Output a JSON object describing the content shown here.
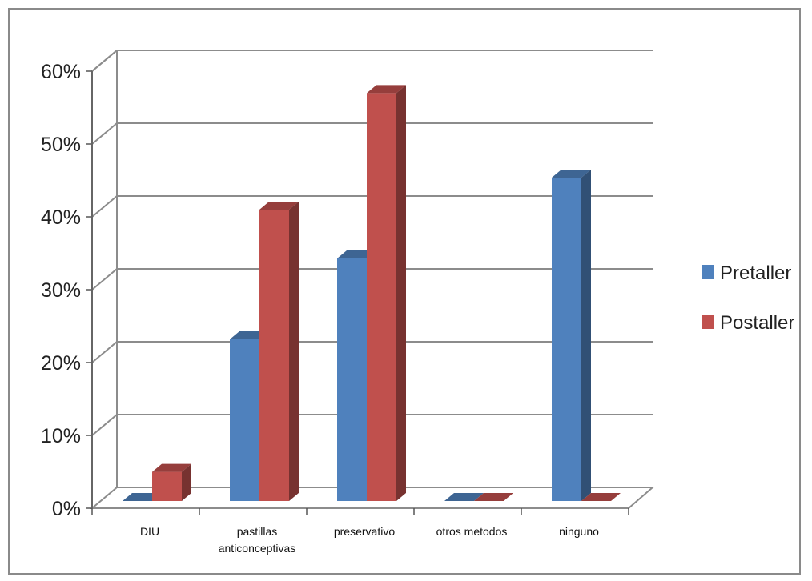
{
  "chart_data": {
    "type": "bar",
    "style": "3d-clustered-column",
    "categories": [
      [
        "DIU"
      ],
      [
        "pastillas",
        "anticonceptivas"
      ],
      [
        "preservativo"
      ],
      [
        "otros metodos"
      ],
      [
        "ninguno"
      ]
    ],
    "series": [
      {
        "name": "Pretaller",
        "color": "#4f81bd",
        "values": [
          0,
          22.2,
          33.3,
          0,
          44.4
        ]
      },
      {
        "name": "Postaller",
        "color": "#c0504d",
        "values": [
          4.0,
          40.0,
          56.0,
          0,
          0
        ]
      }
    ],
    "y_ticks": [
      "0%",
      "10%",
      "20%",
      "30%",
      "40%",
      "50%",
      "60%"
    ],
    "ylim": [
      0,
      60
    ],
    "grid": true,
    "legend_position": "right"
  }
}
